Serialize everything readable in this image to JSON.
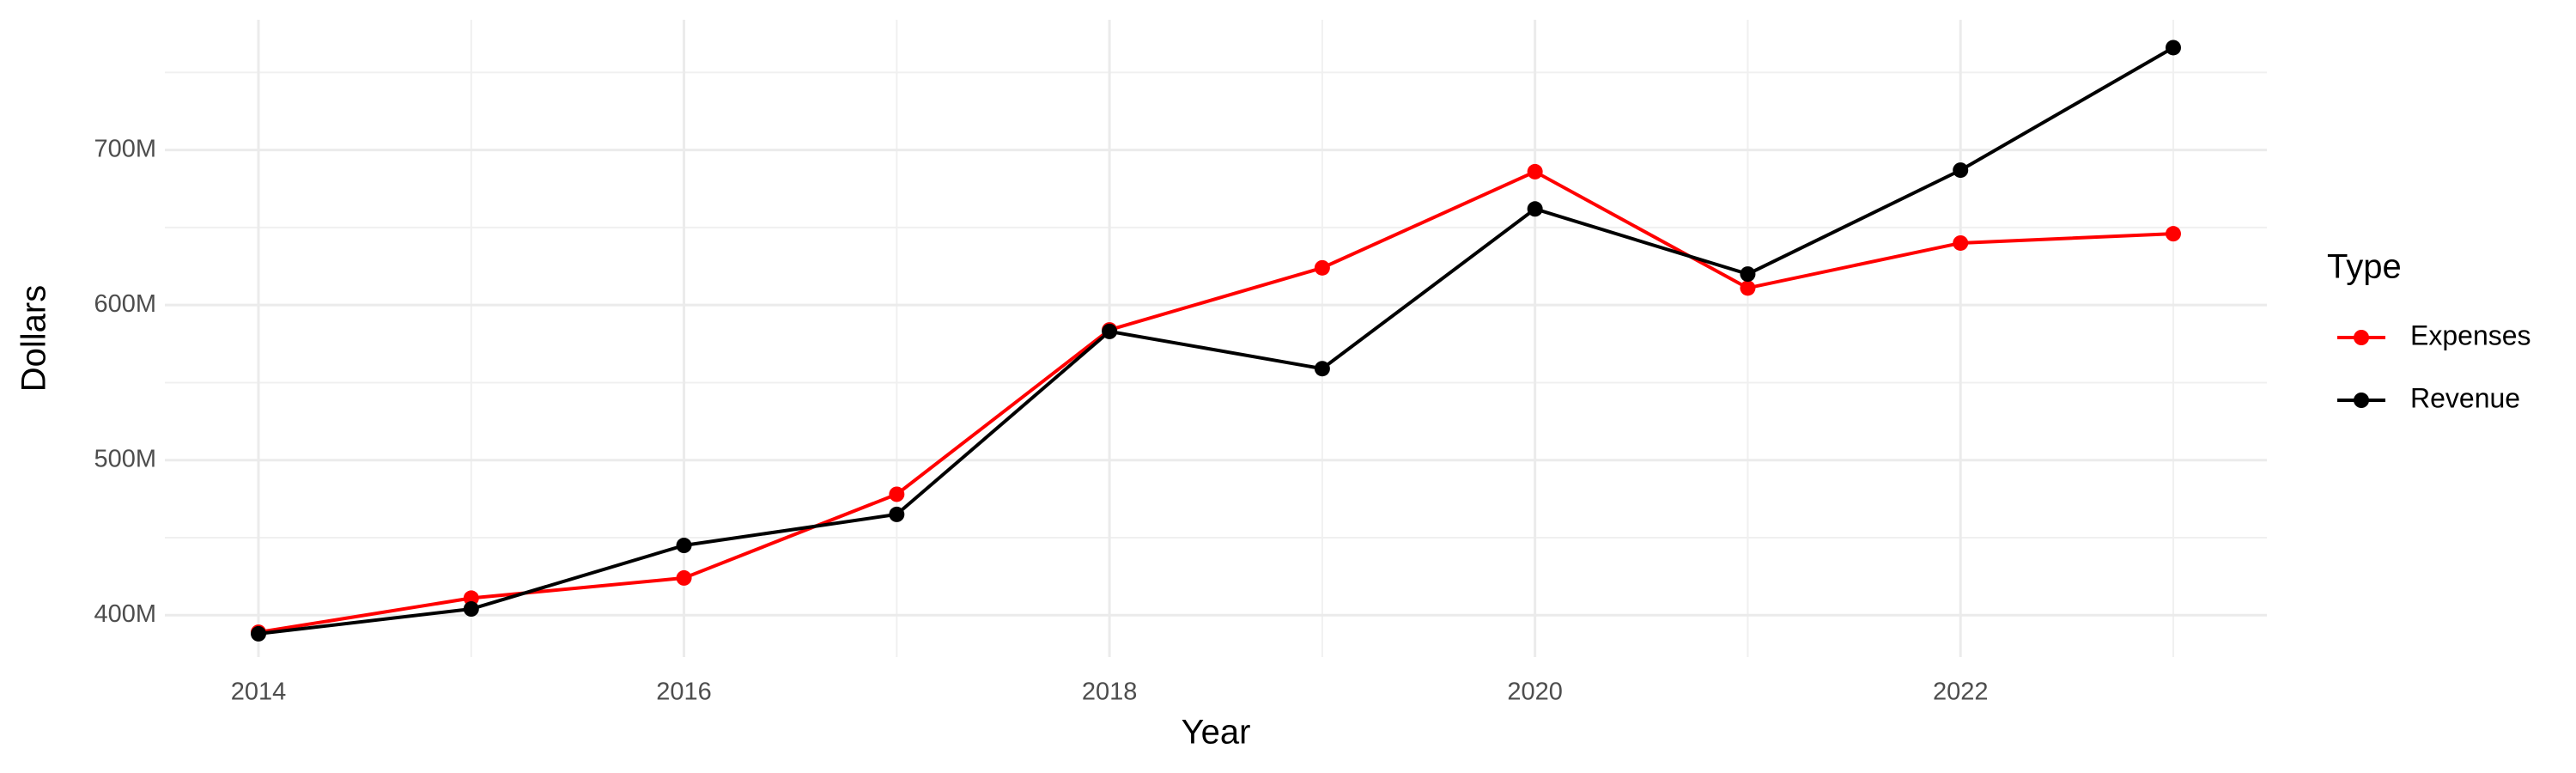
{
  "chart_data": {
    "type": "line",
    "x_label": "Year",
    "y_label": "Dollars",
    "legend_title": "Type",
    "x": [
      2014,
      2015,
      2016,
      2017,
      2018,
      2019,
      2020,
      2021,
      2022,
      2023
    ],
    "series": [
      {
        "name": "Expenses",
        "color": "#ff0000",
        "values": [
          389000000,
          411000000,
          424000000,
          478000000,
          584000000,
          624000000,
          686000000,
          611000000,
          640000000,
          646000000
        ]
      },
      {
        "name": "Revenue",
        "color": "#000000",
        "values": [
          388000000,
          404000000,
          445000000,
          465000000,
          583000000,
          559000000,
          662000000,
          620000000,
          687000000,
          766000000
        ]
      }
    ],
    "xlim": [
      2013.56,
      2023.44
    ],
    "xticks": [
      2014,
      2016,
      2018,
      2020,
      2022
    ],
    "ylim": [
      373000000,
      784000000
    ],
    "yticks": [
      {
        "value": 400000000,
        "label": "400M"
      },
      {
        "value": 500000000,
        "label": "500M"
      },
      {
        "value": 600000000,
        "label": "600M"
      },
      {
        "value": 700000000,
        "label": "700M"
      }
    ],
    "grid": true,
    "legend": "right"
  }
}
